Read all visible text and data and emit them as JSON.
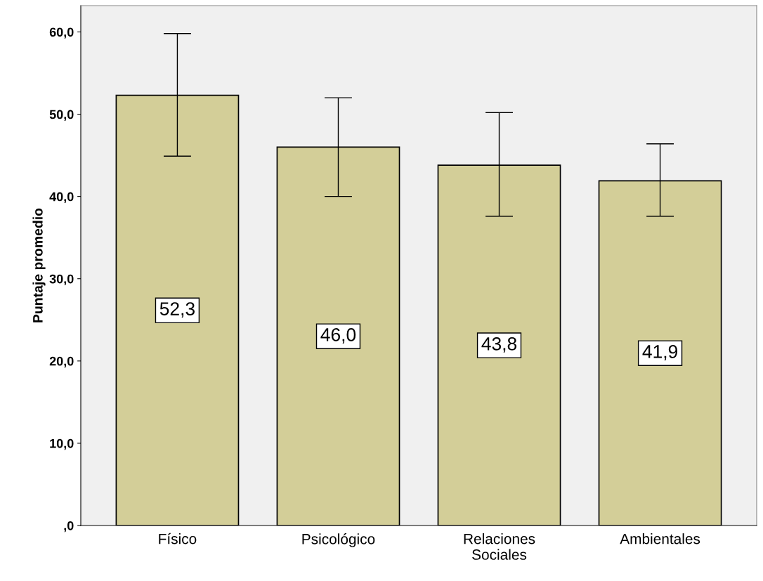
{
  "chart_data": {
    "type": "bar",
    "ylabel": "Puntaje promedio",
    "categories": [
      "Físico",
      "Psicológico",
      "Relaciones\nSociales",
      "Ambientales"
    ],
    "values": [
      52.3,
      46.0,
      43.8,
      41.9
    ],
    "value_labels": [
      "52,3",
      "46,0",
      "43,8",
      "41,9"
    ],
    "errors": [
      [
        44.9,
        59.8
      ],
      [
        40.0,
        52.0
      ],
      [
        37.6,
        50.2
      ],
      [
        37.6,
        46.4
      ]
    ],
    "color": "#d3ce98",
    "ylim": [
      0,
      63.2
    ],
    "yticks": [
      {
        "value": 0,
        "label": ",0"
      },
      {
        "value": 10,
        "label": "10,0"
      },
      {
        "value": 20,
        "label": "20,0"
      },
      {
        "value": 30,
        "label": "30,0"
      },
      {
        "value": 40,
        "label": "40,0"
      },
      {
        "value": 50,
        "label": "50,0"
      },
      {
        "value": 60,
        "label": "60,0"
      }
    ],
    "grid": false
  }
}
